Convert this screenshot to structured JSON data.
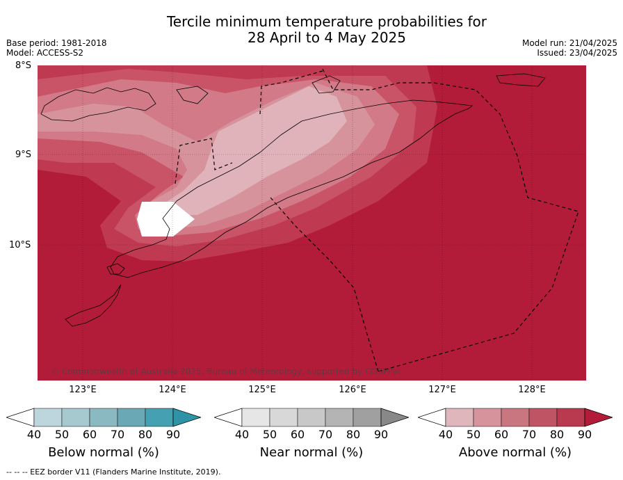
{
  "title_line1": "Tercile minimum temperature probabilities for",
  "title_line2": "28 April to 4 May 2025",
  "base_period": "Base period: 1981-2018",
  "model": "Model: ACCESS-S2",
  "model_run": "Model run: 21/04/2025",
  "issued": "Issued: 23/04/2025",
  "lat_labels": [
    "8°S",
    "9°S",
    "10°S"
  ],
  "lon_labels": [
    "123°E",
    "124°E",
    "125°E",
    "126°E",
    "127°E",
    "128°E"
  ],
  "copyright": "© Commonwealth of Australia 2025, Bureau of Meteorology, supported by COSPPac",
  "colorbars": [
    {
      "title": "Below normal (%)",
      "ticks": [
        "40",
        "50",
        "60",
        "70",
        "80",
        "90"
      ],
      "colors": [
        "#bdd5dc",
        "#a6c9cf",
        "#8bb9c2",
        "#6aa8b5",
        "#45a0b2",
        "#2f93a8"
      ]
    },
    {
      "title": "Near normal (%)",
      "ticks": [
        "40",
        "50",
        "60",
        "70",
        "80",
        "90"
      ],
      "colors": [
        "#e6e6e6",
        "#d8d8d8",
        "#c8c8c8",
        "#b4b4b4",
        "#a0a0a0",
        "#888888"
      ]
    },
    {
      "title": "Above normal (%)",
      "ticks": [
        "40",
        "50",
        "60",
        "70",
        "80",
        "90"
      ],
      "colors": [
        "#e0b6bd",
        "#d6939c",
        "#c97680",
        "#bf5464",
        "#b93a4e",
        "#b21c38"
      ]
    }
  ],
  "eez_legend": "--  --  -- EEZ border V11 (Flanders Marine Institute, 2019)."
}
